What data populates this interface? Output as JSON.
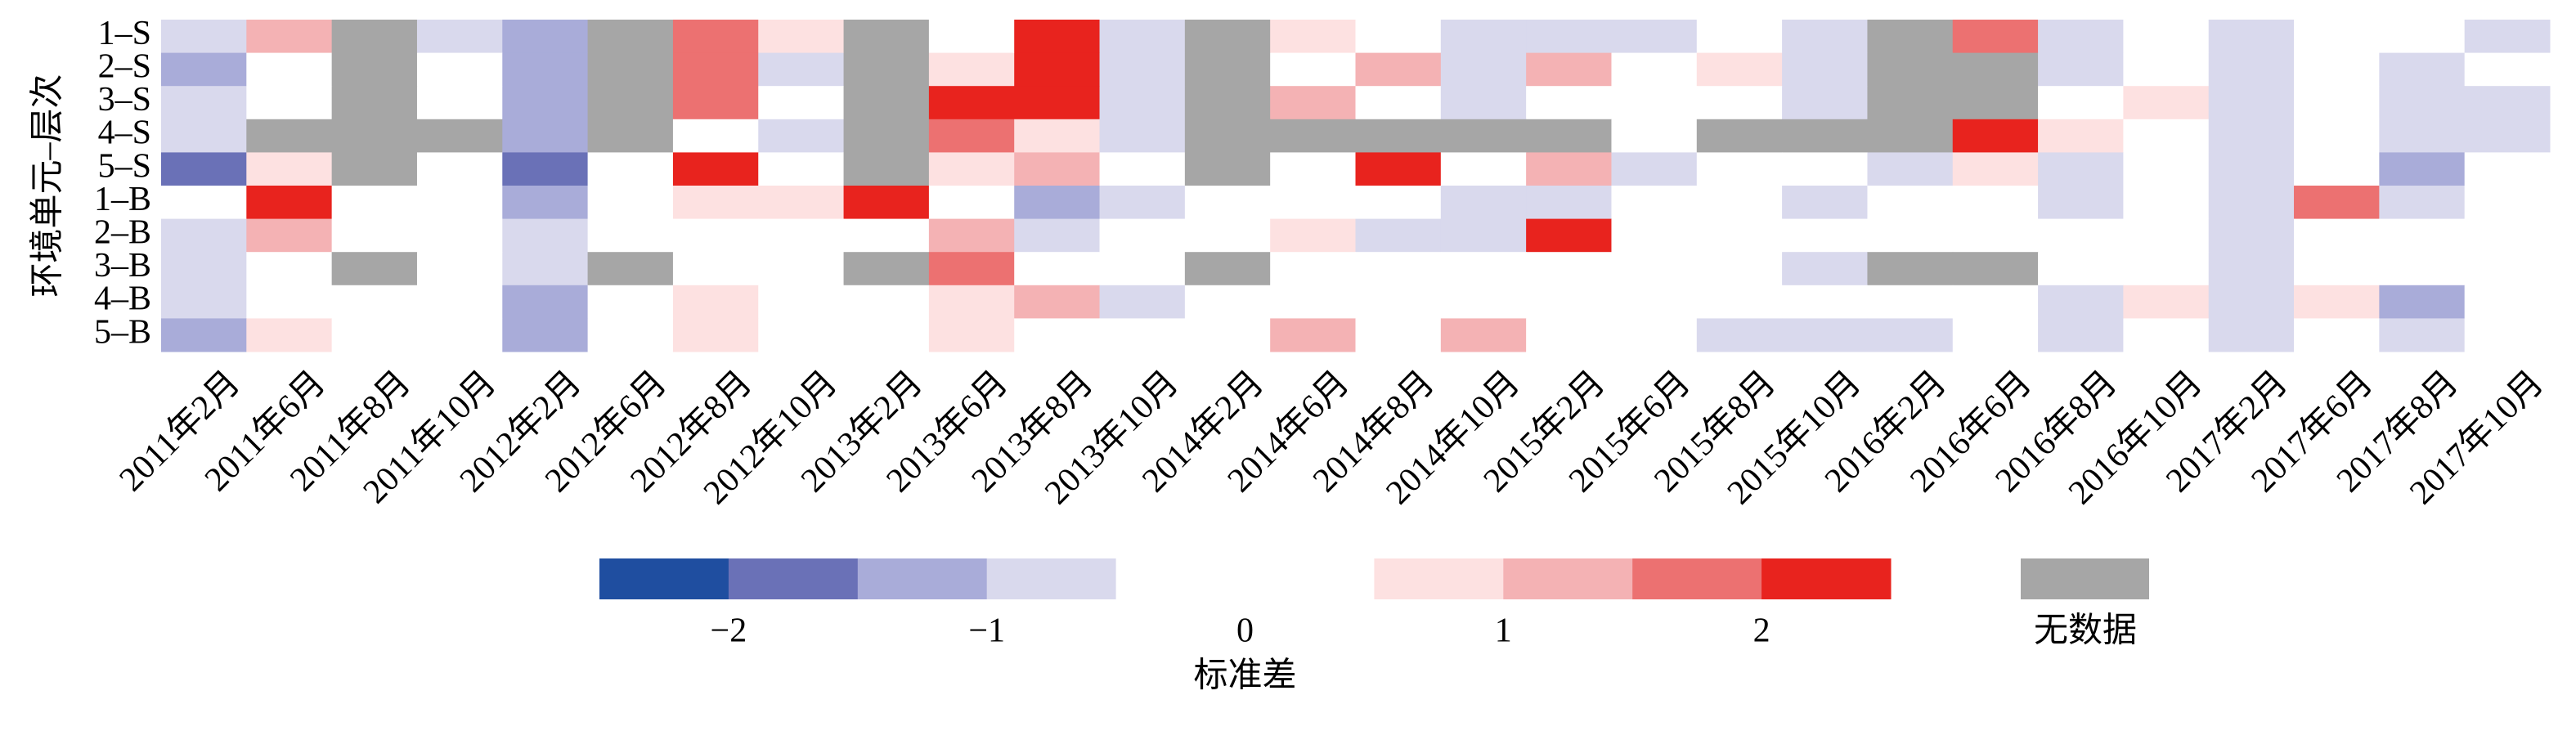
{
  "chart_data": {
    "type": "heatmap",
    "y_label": "环境单元–层次",
    "x": [
      "2011年2月",
      "2011年6月",
      "2011年8月",
      "2011年10月",
      "2012年2月",
      "2012年6月",
      "2012年8月",
      "2012年10月",
      "2013年2月",
      "2013年6月",
      "2013年8月",
      "2013年10月",
      "2014年2月",
      "2014年6月",
      "2014年8月",
      "2014年10月",
      "2015年2月",
      "2015年6月",
      "2015年8月",
      "2015年10月",
      "2016年2月",
      "2016年6月",
      "2016年8月",
      "2016年10月",
      "2017年2月",
      "2017年6月",
      "2017年8月",
      "2017年10月"
    ],
    "y": [
      "1–S",
      "2–S",
      "3–S",
      "4–S",
      "5–S",
      "1–B",
      "2–B",
      "3–B",
      "4–B",
      "5–B"
    ],
    "z": [
      [
        -0.75,
        1.25,
        null,
        -0.75,
        -1.25,
        null,
        1.75,
        0.75,
        null,
        0,
        2.25,
        -0.75,
        null,
        0.75,
        0,
        -0.75,
        -0.75,
        -0.75,
        0,
        -0.75,
        null,
        1.75,
        -0.75,
        0,
        -0.75,
        0,
        0,
        -0.75
      ],
      [
        -1.25,
        0,
        null,
        0,
        -1.25,
        null,
        1.75,
        -0.75,
        null,
        0.75,
        2.25,
        -0.75,
        null,
        0,
        1.25,
        -0.75,
        1.25,
        0,
        0.75,
        -0.75,
        null,
        null,
        -0.75,
        0,
        -0.75,
        0,
        -0.75,
        0
      ],
      [
        -0.75,
        0,
        null,
        0,
        -1.25,
        null,
        1.75,
        0,
        null,
        2.25,
        2.25,
        -0.75,
        null,
        1.25,
        0,
        -0.75,
        0,
        0,
        0,
        -0.75,
        null,
        null,
        0,
        0.75,
        -0.75,
        0,
        -0.75,
        -0.75
      ],
      [
        -0.75,
        null,
        null,
        null,
        -1.25,
        null,
        0,
        -0.75,
        null,
        1.75,
        0.75,
        -0.75,
        null,
        null,
        null,
        null,
        null,
        0,
        null,
        null,
        null,
        2.25,
        0.75,
        0,
        -0.75,
        0,
        -0.75,
        -0.75
      ],
      [
        -1.75,
        0.75,
        null,
        0,
        -1.75,
        0,
        2.25,
        0,
        null,
        0.75,
        1.25,
        0,
        null,
        0,
        2.25,
        0,
        1.25,
        -0.75,
        0,
        0,
        -0.75,
        0.75,
        -0.75,
        0,
        -0.75,
        0,
        -1.25,
        0
      ],
      [
        0,
        2.25,
        0,
        0,
        -1.25,
        0,
        0.75,
        0.75,
        2.25,
        0,
        -1.25,
        -0.75,
        0,
        0,
        0,
        -0.75,
        -0.75,
        0,
        0,
        -0.75,
        0,
        0,
        -0.75,
        0,
        -0.75,
        1.75,
        -0.75,
        0
      ],
      [
        -0.75,
        1.25,
        0,
        0,
        -0.75,
        0,
        0,
        0,
        0,
        1.25,
        -0.75,
        0,
        0,
        0.75,
        -0.75,
        -0.75,
        2.25,
        0,
        0,
        0,
        0,
        0,
        0,
        0,
        -0.75,
        0,
        0,
        0
      ],
      [
        -0.75,
        0,
        null,
        0,
        -0.75,
        null,
        0,
        0,
        null,
        1.75,
        0,
        0,
        null,
        0,
        0,
        0,
        0,
        0,
        0,
        -0.75,
        null,
        null,
        0,
        0,
        -0.75,
        0,
        0,
        0
      ],
      [
        -0.75,
        0,
        0,
        0,
        -1.25,
        0,
        0.75,
        0,
        0,
        0.75,
        1.25,
        -0.75,
        0,
        0,
        0,
        0,
        0,
        0,
        0,
        0,
        0,
        0,
        -0.75,
        0.75,
        -0.75,
        0.75,
        -1.25,
        0
      ],
      [
        -1.25,
        0.75,
        0,
        0,
        -1.25,
        0,
        0.75,
        0,
        0,
        0.75,
        0,
        0,
        0,
        1.25,
        0,
        1.25,
        0,
        0,
        -0.75,
        -0.75,
        -0.75,
        0,
        -0.75,
        0,
        -0.75,
        0,
        -0.75,
        0
      ]
    ],
    "colorbar": {
      "label": "标准差",
      "bounds": [
        -2.5,
        -2,
        -1.5,
        -1,
        -0.5,
        0.5,
        1,
        1.5,
        2,
        2.5
      ],
      "colors": [
        "#1f4ea0",
        "#6a71b7",
        "#a9acd9",
        "#d9d9ed",
        "#ffffff",
        "#fde1e1",
        "#f4b2b4",
        "#ec7171",
        "#e8231e"
      ],
      "ticks": [
        {
          "value": -2,
          "label": "−2"
        },
        {
          "value": -1,
          "label": "−1"
        },
        0,
        1,
        2
      ]
    },
    "missing": {
      "color": "#a6a6a6",
      "label": "无数据"
    }
  }
}
